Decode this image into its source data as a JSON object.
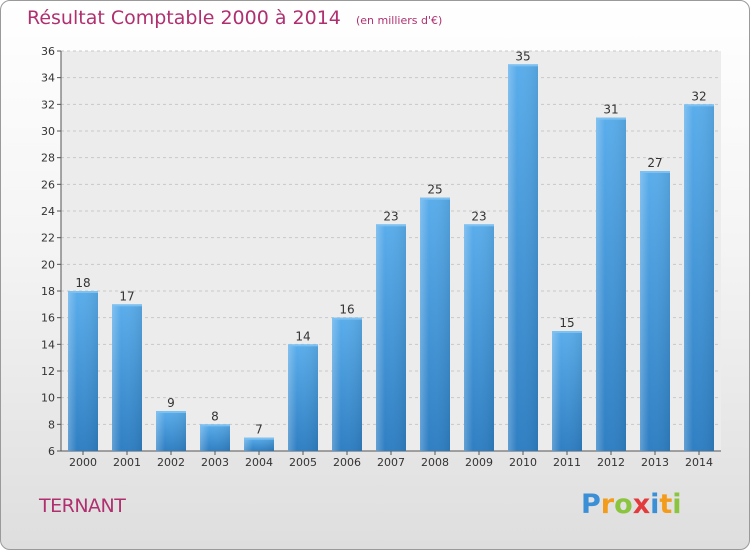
{
  "chart_data": {
    "type": "bar",
    "title": "Résultat Comptable 2000 à 2014",
    "subtitle": "(en milliers d'€)",
    "categories": [
      "2000",
      "2001",
      "2002",
      "2003",
      "2004",
      "2005",
      "2006",
      "2007",
      "2008",
      "2009",
      "2010",
      "2011",
      "2012",
      "2013",
      "2014"
    ],
    "values": [
      18,
      17,
      9,
      8,
      7,
      14,
      16,
      23,
      25,
      23,
      35,
      15,
      31,
      27,
      32
    ],
    "ylim": [
      6,
      36
    ],
    "yticks": [
      "6",
      "8",
      "10",
      "12",
      "14",
      "16",
      "18",
      "20",
      "22",
      "24",
      "26",
      "28",
      "30",
      "32",
      "34",
      "36"
    ],
    "grid": true,
    "bar_color": "#4c9fe0"
  },
  "location": "TERNANT",
  "logo": {
    "letters": [
      "P",
      "r",
      "o",
      "x",
      "i",
      "t",
      "i"
    ],
    "colors": [
      "#3a8fd6",
      "#f39c1b",
      "#8bc43f",
      "#e33b3b",
      "#3a8fd6",
      "#f39c1b",
      "#8bc43f"
    ]
  }
}
